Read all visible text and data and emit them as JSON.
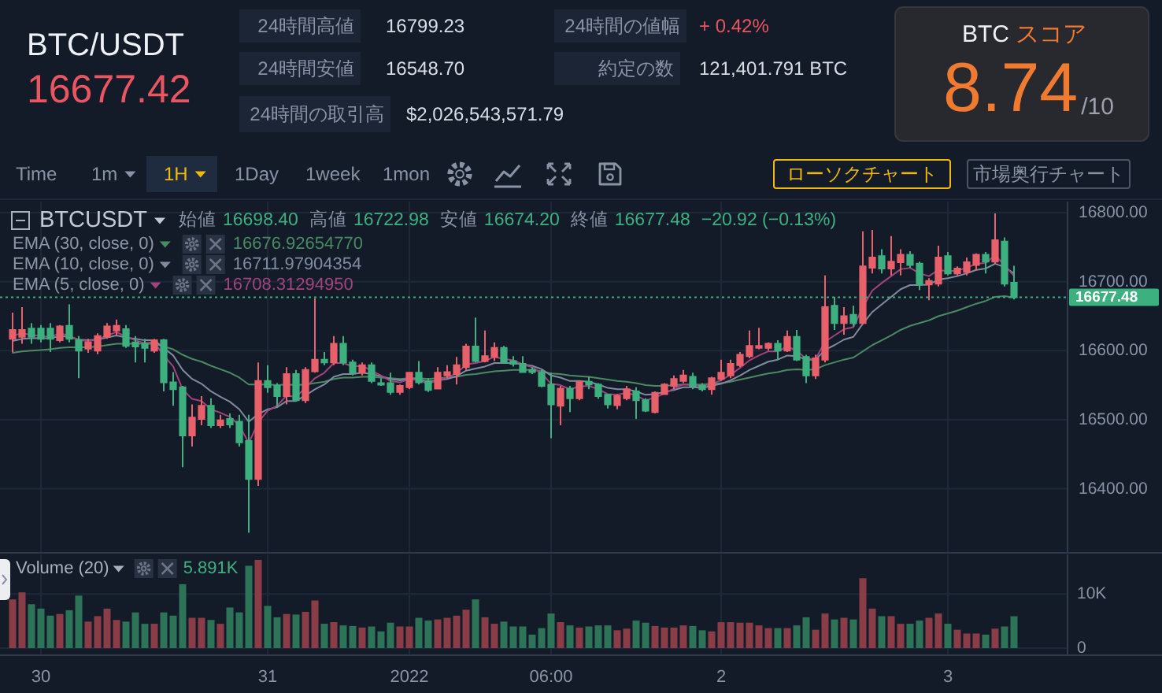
{
  "chart_data": [
    {
      "type": "other",
      "title": "BTC/USDT",
      "annotations": [
        "16677.42",
        "24時間高値",
        "16799.23",
        "24時間安値",
        "16548.70",
        "24時間の取引高",
        "$2,026,543,571.79",
        "24時間の値幅",
        "+ 0.42%",
        "約定の数",
        "121,401.791 BTC",
        "BTC",
        "スコア",
        "8.74",
        "/10",
        "Time",
        "1m",
        "1H",
        "1Day",
        "1week",
        "1mon",
        "ローソクチャート",
        "市場奥行チャート"
      ]
    },
    {
      "type": "candlestick",
      "title": "BTCUSDT",
      "categories": [
        null,
        null,
        null,
        null,
        null,
        null,
        null,
        null,
        null,
        null,
        null,
        null,
        null,
        null,
        null,
        null,
        null,
        null,
        null,
        null,
        null,
        null,
        null,
        null,
        null,
        null,
        null,
        null,
        null,
        null,
        null,
        null,
        null,
        null,
        null,
        null,
        null,
        null,
        null,
        null,
        null,
        null,
        null,
        null,
        null,
        null,
        null,
        null,
        null,
        null,
        null,
        null,
        null,
        null,
        null,
        null,
        null,
        null,
        null,
        null,
        null,
        null,
        null,
        null,
        null,
        null,
        null,
        null,
        null,
        null,
        null,
        null,
        null,
        null,
        null,
        null,
        null,
        null,
        null,
        null,
        null,
        null,
        null,
        null,
        null,
        null,
        null,
        null,
        null,
        null,
        null,
        null,
        null,
        null,
        null,
        null,
        null,
        null,
        null,
        null,
        null,
        null,
        null,
        null,
        null,
        null,
        null
      ],
      "ohlc": [
        [
          16617,
          16655,
          16598,
          16630
        ],
        [
          16620,
          16663,
          16610,
          16630
        ],
        [
          16632,
          16640,
          16610,
          16620
        ],
        [
          16632,
          16637,
          16612,
          16617
        ],
        [
          16632,
          16640,
          16598,
          16617
        ],
        [
          16615,
          16637,
          16612,
          16635
        ],
        [
          16636,
          16667,
          16612,
          16617
        ],
        [
          16615,
          16621,
          16560,
          16600
        ],
        [
          16603,
          16617,
          16597,
          16612
        ],
        [
          16600,
          16625,
          16595,
          16621
        ],
        [
          16620,
          16640,
          16617,
          16635
        ],
        [
          16629,
          16645,
          16621,
          16636
        ],
        [
          16631,
          16637,
          16604,
          16607
        ],
        [
          16612,
          16621,
          16583,
          16606
        ],
        [
          16610,
          16617,
          16583,
          16604
        ],
        [
          16600,
          16617,
          16597,
          16615
        ],
        [
          16615,
          16617,
          16541,
          16554
        ],
        [
          16554,
          16569,
          16520,
          16544
        ],
        [
          16547,
          16549,
          16431,
          16477
        ],
        [
          16477,
          16522,
          16461,
          16503
        ],
        [
          16501,
          16534,
          16492,
          16520
        ],
        [
          16520,
          16531,
          16488,
          16492
        ],
        [
          16492,
          16507,
          16488,
          16499
        ],
        [
          16501,
          16509,
          16488,
          16493
        ],
        [
          16497,
          16507,
          16461,
          16467
        ],
        [
          16469,
          16507,
          16336,
          16414
        ],
        [
          16414,
          16583,
          16404,
          16556
        ],
        [
          16556,
          16579,
          16539,
          16547
        ],
        [
          16549,
          16553,
          16518,
          16534
        ],
        [
          16534,
          16576,
          16522,
          16566
        ],
        [
          16566,
          16572,
          16526,
          16528
        ],
        [
          16528,
          16576,
          16524,
          16572
        ],
        [
          16570,
          16676,
          16568,
          16587
        ],
        [
          16587,
          16598,
          16579,
          16583
        ],
        [
          16583,
          16621,
          16579,
          16610
        ],
        [
          16610,
          16621,
          16579,
          16583
        ],
        [
          16583,
          16587,
          16564,
          16568
        ],
        [
          16568,
          16583,
          16564,
          16579
        ],
        [
          16579,
          16583,
          16553,
          16556
        ],
        [
          16553,
          16560,
          16549,
          16551
        ],
        [
          16553,
          16568,
          16536,
          16540
        ],
        [
          16540,
          16551,
          16536,
          16549
        ],
        [
          16547,
          16569,
          16544,
          16568
        ],
        [
          16568,
          16585,
          16551,
          16554
        ],
        [
          16556,
          16560,
          16540,
          16543
        ],
        [
          16545,
          16576,
          16544,
          16568
        ],
        [
          16564,
          16579,
          16560,
          16569
        ],
        [
          16566,
          16591,
          16551,
          16579
        ],
        [
          16576,
          16610,
          16572,
          16606
        ],
        [
          16606,
          16648,
          16583,
          16585
        ],
        [
          16585,
          16629,
          16583,
          16592
        ],
        [
          16591,
          16612,
          16585,
          16604
        ],
        [
          16604,
          16607,
          16582,
          16583
        ],
        [
          16585,
          16592,
          16577,
          16581
        ],
        [
          16581,
          16592,
          16568,
          16569
        ],
        [
          16572,
          16576,
          16566,
          16569
        ],
        [
          16568,
          16572,
          16547,
          16549
        ],
        [
          16551,
          16568,
          16473,
          16522
        ],
        [
          16520,
          16549,
          16492,
          16545
        ],
        [
          16545,
          16549,
          16511,
          16531
        ],
        [
          16531,
          16556,
          16528,
          16555
        ],
        [
          16555,
          16562,
          16544,
          16551
        ],
        [
          16551,
          16553,
          16530,
          16534
        ],
        [
          16536,
          16537,
          16516,
          16522
        ],
        [
          16521,
          16537,
          16515,
          16534
        ],
        [
          16531,
          16549,
          16528,
          16544
        ],
        [
          16541,
          16547,
          16501,
          16528
        ],
        [
          16528,
          16531,
          16511,
          16513
        ],
        [
          16511,
          16541,
          16509,
          16539
        ],
        [
          16537,
          16553,
          16536,
          16551
        ],
        [
          16549,
          16564,
          16544,
          16559
        ],
        [
          16556,
          16572,
          16553,
          16564
        ],
        [
          16562,
          16568,
          16544,
          16549
        ],
        [
          16549,
          16553,
          16541,
          16544
        ],
        [
          16544,
          16562,
          16536,
          16560
        ],
        [
          16559,
          16587,
          16556,
          16568
        ],
        [
          16564,
          16587,
          16560,
          16581
        ],
        [
          16579,
          16598,
          16576,
          16594
        ],
        [
          16592,
          16629,
          16589,
          16607
        ],
        [
          16604,
          16633,
          16602,
          16607
        ],
        [
          16604,
          16612,
          16600,
          16610
        ],
        [
          16610,
          16615,
          16587,
          16600
        ],
        [
          16600,
          16629,
          16598,
          16620
        ],
        [
          16620,
          16630,
          16585,
          16587
        ],
        [
          16591,
          16594,
          16553,
          16564
        ],
        [
          16564,
          16594,
          16559,
          16589
        ],
        [
          16587,
          16709,
          16583,
          16663
        ],
        [
          16665,
          16678,
          16630,
          16640
        ],
        [
          16640,
          16663,
          16623,
          16650
        ],
        [
          16652,
          16665,
          16635,
          16640
        ],
        [
          16640,
          16773,
          16638,
          16722
        ],
        [
          16720,
          16775,
          16712,
          16735
        ],
        [
          16737,
          16747,
          16712,
          16719
        ],
        [
          16719,
          16766,
          16709,
          16729
        ],
        [
          16728,
          16747,
          16709,
          16739
        ],
        [
          16739,
          16744,
          16720,
          16724
        ],
        [
          16726,
          16729,
          16688,
          16696
        ],
        [
          16696,
          16705,
          16673,
          16701
        ],
        [
          16697,
          16752,
          16693,
          16735
        ],
        [
          16737,
          16743,
          16709,
          16712
        ],
        [
          16712,
          16722,
          16709,
          16719
        ],
        [
          16714,
          16735,
          16709,
          16728
        ],
        [
          16724,
          16741,
          16716,
          16739
        ],
        [
          16739,
          16743,
          16712,
          16729
        ],
        [
          16729,
          16799,
          16726,
          16760
        ],
        [
          16758,
          16764,
          16693,
          16697
        ],
        [
          16698.4,
          16722.98,
          16674.2,
          16677.48
        ]
      ],
      "colors": [
        "#e8606a",
        "#e8606a",
        "#3cb07f",
        "#3cb07f",
        "#3cb07f",
        "#e8606a",
        "#3cb07f",
        "#3cb07f",
        "#e8606a",
        "#e8606a",
        "#e8606a",
        "#e8606a",
        "#3cb07f",
        "#3cb07f",
        "#3cb07f",
        "#e8606a",
        "#3cb07f",
        "#3cb07f",
        "#3cb07f",
        "#e8606a",
        "#e8606a",
        "#3cb07f",
        "#e8606a",
        "#3cb07f",
        "#3cb07f",
        "#3cb07f",
        "#e8606a",
        "#3cb07f",
        "#3cb07f",
        "#e8606a",
        "#3cb07f",
        "#e8606a",
        "#e8606a",
        "#3cb07f",
        "#e8606a",
        "#3cb07f",
        "#3cb07f",
        "#e8606a",
        "#3cb07f",
        "#3cb07f",
        "#3cb07f",
        "#e8606a",
        "#e8606a",
        "#3cb07f",
        "#3cb07f",
        "#e8606a",
        "#e8606a",
        "#e8606a",
        "#e8606a",
        "#3cb07f",
        "#e8606a",
        "#e8606a",
        "#3cb07f",
        "#3cb07f",
        "#3cb07f",
        "#3cb07f",
        "#3cb07f",
        "#3cb07f",
        "#e8606a",
        "#3cb07f",
        "#e8606a",
        "#3cb07f",
        "#3cb07f",
        "#3cb07f",
        "#e8606a",
        "#e8606a",
        "#3cb07f",
        "#3cb07f",
        "#e8606a",
        "#e8606a",
        "#e8606a",
        "#e8606a",
        "#3cb07f",
        "#3cb07f",
        "#e8606a",
        "#e8606a",
        "#e8606a",
        "#e8606a",
        "#e8606a",
        "#e8606a",
        "#e8606a",
        "#3cb07f",
        "#e8606a",
        "#3cb07f",
        "#3cb07f",
        "#e8606a",
        "#e8606a",
        "#3cb07f",
        "#e8606a",
        "#3cb07f",
        "#e8606a",
        "#e8606a",
        "#3cb07f",
        "#e8606a",
        "#e8606a",
        "#3cb07f",
        "#3cb07f",
        "#e8606a",
        "#e8606a",
        "#3cb07f",
        "#e8606a",
        "#e8606a",
        "#e8606a",
        "#3cb07f",
        "#e8606a",
        "#3cb07f",
        "#3cb07f"
      ],
      "series": [
        {
          "name": "EMA (30, close, 0)",
          "type": "line",
          "color": "#4a8a62",
          "values": [
            16597,
            16599,
            16600,
            16601,
            16602,
            16604,
            16605,
            16605,
            16605,
            16606,
            16608,
            16610,
            16610,
            16610,
            16610,
            16610,
            16606,
            16602,
            16594,
            16588,
            16584,
            16578,
            16573,
            16568,
            16561,
            16551,
            16551,
            16551,
            16550,
            16551,
            16550,
            16551,
            16553,
            16555,
            16559,
            16561,
            16561,
            16562,
            16562,
            16561,
            16560,
            16559,
            16560,
            16560,
            16559,
            16560,
            16561,
            16562,
            16565,
            16566,
            16568,
            16570,
            16571,
            16572,
            16572,
            16572,
            16570,
            16567,
            16566,
            16564,
            16563,
            16562,
            16560,
            16558,
            16556,
            16555,
            16553,
            16550,
            16549,
            16549,
            16550,
            16551,
            16551,
            16551,
            16552,
            16553,
            16555,
            16558,
            16561,
            16564,
            16567,
            16569,
            16572,
            16573,
            16572,
            16573,
            16579,
            16583,
            16587,
            16590,
            16599,
            16608,
            16615,
            16622,
            16630,
            16636,
            16640,
            16644,
            16650,
            16654,
            16658,
            16663,
            16668,
            16672,
            16678,
            16679,
            16676.93
          ]
        },
        {
          "name": "EMA (10, close, 0)",
          "type": "line",
          "color": "#7f8ba0",
          "values": [
            16614,
            16617,
            16618,
            16618,
            16618,
            16621,
            16620,
            16616,
            16615,
            16616,
            16619,
            16622,
            16619,
            16617,
            16615,
            16615,
            16604,
            16593,
            16572,
            16559,
            16552,
            16541,
            16533,
            16526,
            16515,
            16497,
            16508,
            16515,
            16518,
            16527,
            16527,
            16535,
            16544,
            16551,
            16562,
            16566,
            16566,
            16568,
            16566,
            16563,
            16559,
            16557,
            16559,
            16558,
            16555,
            16557,
            16559,
            16563,
            16571,
            16574,
            16577,
            16582,
            16582,
            16582,
            16580,
            16578,
            16573,
            16564,
            16561,
            16556,
            16556,
            16555,
            16551,
            16546,
            16544,
            16544,
            16541,
            16536,
            16537,
            16540,
            16543,
            16547,
            16547,
            16546,
            16549,
            16552,
            16557,
            16564,
            16572,
            16578,
            16584,
            16587,
            16593,
            16592,
            16587,
            16587,
            16601,
            16608,
            16616,
            16620,
            16639,
            16656,
            16667,
            16678,
            16689,
            16695,
            16695,
            16696,
            16703,
            16705,
            16708,
            16712,
            16717,
            16719,
            16726,
            16721,
            16711.98
          ]
        },
        {
          "name": "EMA (5, close, 0)",
          "type": "line",
          "color": "#a0437f",
          "values": [
            16622,
            16625,
            16623,
            16621,
            16620,
            16625,
            16622,
            16615,
            16614,
            16616,
            16622,
            16627,
            16620,
            16615,
            16611,
            16612,
            16593,
            16577,
            16544,
            16530,
            16527,
            16515,
            16510,
            16504,
            16492,
            16466,
            16496,
            16513,
            16520,
            16535,
            16533,
            16546,
            16560,
            16568,
            16582,
            16582,
            16577,
            16578,
            16571,
            16564,
            16556,
            16554,
            16559,
            16557,
            16552,
            16557,
            16561,
            16567,
            16580,
            16582,
            16585,
            16591,
            16588,
            16586,
            16580,
            16576,
            16567,
            16552,
            16550,
            16544,
            16548,
            16549,
            16544,
            16537,
            16536,
            16539,
            16535,
            16528,
            16532,
            16538,
            16545,
            16551,
            16550,
            16548,
            16552,
            16557,
            16565,
            16575,
            16586,
            16593,
            16599,
            16599,
            16606,
            16600,
            16588,
            16588,
            16613,
            16622,
            16631,
            16634,
            16663,
            16687,
            16698,
            16708,
            16718,
            16720,
            16712,
            16708,
            16717,
            16715,
            16716,
            16720,
            16726,
            16727,
            16738,
            16724,
            16708.31
          ]
        }
      ],
      "ylim": [
        16307,
        16816
      ],
      "yticks": [
        {
          "value": 16400,
          "label": "16400.00"
        },
        {
          "value": 16500,
          "label": "16500.00"
        },
        {
          "value": 16600,
          "label": "16600.00"
        },
        {
          "value": 16700,
          "label": "16700.00"
        },
        {
          "value": 16800,
          "label": "16800.00"
        }
      ],
      "grid": true,
      "legend": "top left",
      "tick_labels": "y",
      "ref_lines": [
        {
          "axis": "y",
          "value": 16677.48,
          "label": "16677.48",
          "color": "#3cb07f",
          "line_style": "dotted"
        }
      ],
      "annotations": [
        "始値",
        "16698.40",
        "高値",
        "16722.98",
        "安値",
        "16674.20",
        "終値",
        "16677.48",
        "−20.92 (−0.13%)",
        "16676.92654770",
        "16711.97904354",
        "16708.31294950"
      ]
    },
    {
      "type": "bar",
      "title": "Volume (20)",
      "categories": [
        null,
        null,
        null,
        "30",
        null,
        null,
        null,
        null,
        null,
        null,
        null,
        null,
        null,
        null,
        null,
        null,
        null,
        null,
        null,
        null,
        null,
        null,
        null,
        null,
        null,
        null,
        null,
        "31",
        null,
        null,
        null,
        null,
        null,
        null,
        null,
        null,
        null,
        null,
        null,
        null,
        null,
        null,
        "2022",
        null,
        null,
        null,
        null,
        null,
        null,
        null,
        null,
        null,
        null,
        null,
        null,
        null,
        null,
        "06:00",
        null,
        null,
        null,
        null,
        null,
        null,
        null,
        null,
        null,
        null,
        null,
        null,
        null,
        null,
        null,
        null,
        null,
        "2",
        null,
        null,
        null,
        null,
        null,
        null,
        null,
        null,
        null,
        null,
        null,
        null,
        null,
        null,
        null,
        null,
        null,
        null,
        null,
        null,
        null,
        null,
        null,
        "3",
        null,
        null,
        null,
        null,
        null,
        null,
        null
      ],
      "values": [
        9000,
        10300,
        8100,
        7300,
        6000,
        6300,
        7000,
        9700,
        4900,
        5900,
        7300,
        5200,
        4900,
        6600,
        4500,
        4500,
        6600,
        6000,
        11800,
        5600,
        5600,
        5200,
        4500,
        7500,
        6600,
        15200,
        16300,
        7800,
        5700,
        6300,
        6200,
        6700,
        8800,
        4500,
        4800,
        4200,
        4100,
        3800,
        4000,
        3100,
        4700,
        4000,
        4000,
        5600,
        5100,
        5300,
        5600,
        6000,
        7100,
        9000,
        5700,
        4500,
        4900,
        4000,
        4000,
        2500,
        3700,
        6400,
        4800,
        4200,
        3800,
        4000,
        4200,
        4200,
        3300,
        3600,
        5100,
        4700,
        4100,
        3800,
        3800,
        4200,
        4100,
        3300,
        3100,
        4800,
        4800,
        4700,
        4700,
        4200,
        3700,
        3700,
        3700,
        4200,
        5700,
        3400,
        6400,
        5300,
        5600,
        5300,
        12900,
        7300,
        5900,
        5900,
        4500,
        4500,
        5100,
        5600,
        6400,
        4500,
        3400,
        2700,
        2700,
        2500,
        3600,
        4000,
        5891
      ],
      "colors": [
        "#8a3c47",
        "#8a3c47",
        "#2d7358",
        "#2d7358",
        "#2d7358",
        "#8a3c47",
        "#2d7358",
        "#2d7358",
        "#8a3c47",
        "#8a3c47",
        "#8a3c47",
        "#8a3c47",
        "#2d7358",
        "#2d7358",
        "#2d7358",
        "#8a3c47",
        "#2d7358",
        "#2d7358",
        "#2d7358",
        "#8a3c47",
        "#8a3c47",
        "#2d7358",
        "#8a3c47",
        "#2d7358",
        "#2d7358",
        "#2d7358",
        "#8a3c47",
        "#2d7358",
        "#2d7358",
        "#8a3c47",
        "#2d7358",
        "#8a3c47",
        "#8a3c47",
        "#2d7358",
        "#8a3c47",
        "#2d7358",
        "#2d7358",
        "#8a3c47",
        "#2d7358",
        "#2d7358",
        "#2d7358",
        "#8a3c47",
        "#8a3c47",
        "#2d7358",
        "#2d7358",
        "#8a3c47",
        "#8a3c47",
        "#8a3c47",
        "#8a3c47",
        "#2d7358",
        "#8a3c47",
        "#8a3c47",
        "#2d7358",
        "#2d7358",
        "#2d7358",
        "#2d7358",
        "#2d7358",
        "#2d7358",
        "#8a3c47",
        "#2d7358",
        "#8a3c47",
        "#2d7358",
        "#2d7358",
        "#2d7358",
        "#8a3c47",
        "#8a3c47",
        "#2d7358",
        "#2d7358",
        "#8a3c47",
        "#8a3c47",
        "#8a3c47",
        "#8a3c47",
        "#2d7358",
        "#2d7358",
        "#8a3c47",
        "#8a3c47",
        "#8a3c47",
        "#8a3c47",
        "#8a3c47",
        "#8a3c47",
        "#8a3c47",
        "#2d7358",
        "#8a3c47",
        "#2d7358",
        "#2d7358",
        "#8a3c47",
        "#8a3c47",
        "#2d7358",
        "#8a3c47",
        "#2d7358",
        "#8a3c47",
        "#8a3c47",
        "#2d7358",
        "#8a3c47",
        "#8a3c47",
        "#2d7358",
        "#2d7358",
        "#8a3c47",
        "#8a3c47",
        "#2d7358",
        "#8a3c47",
        "#8a3c47",
        "#8a3c47",
        "#2d7358",
        "#8a3c47",
        "#2d7358",
        "#2d7358"
      ],
      "ylim": [
        -1300,
        17300
      ],
      "yticks": [
        0,
        {
          "value": 10000,
          "label": "10K"
        }
      ],
      "grid": true,
      "annotations": [
        "5.891K"
      ]
    }
  ]
}
